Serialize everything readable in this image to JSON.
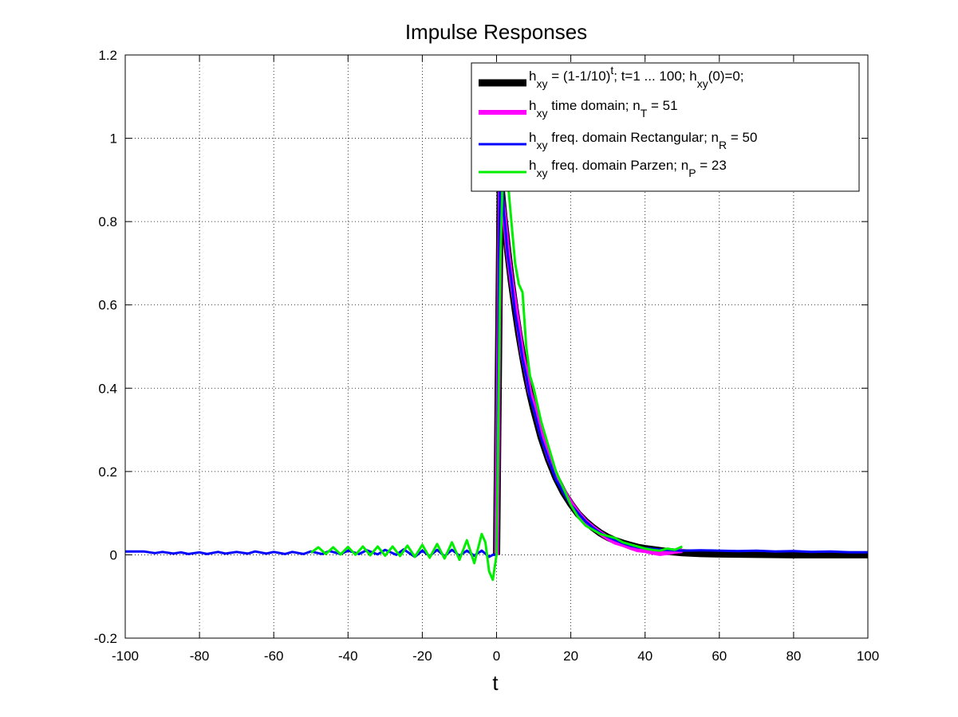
{
  "chart_data": {
    "type": "line",
    "title": "Impulse Responses",
    "xlabel": "t",
    "ylabel": "",
    "xlim": [
      -100,
      100
    ],
    "ylim": [
      -0.2,
      1.2
    ],
    "x_ticks": [
      "-100",
      "-80",
      "-60",
      "-40",
      "-20",
      "0",
      "20",
      "40",
      "60",
      "80",
      "100"
    ],
    "y_ticks": [
      "-0.2",
      "0",
      "0.2",
      "0.4",
      "0.6",
      "0.8",
      "1",
      "1.2"
    ],
    "grid": true,
    "legend_position": "top-right",
    "legend": [
      {
        "color": "#000000",
        "main": "h",
        "sub": "xy",
        "rest": " = (1-1/10)",
        "sup": "t",
        "rest2": "; t=1 ... 100; h",
        "sub2": "xy",
        "rest3": "(0)=0;"
      },
      {
        "color": "#ff00ff",
        "main": "h",
        "sub": "xy",
        "rest": " time domain; n",
        "sub2": "T",
        "rest2": " = 51"
      },
      {
        "color": "#0000ff",
        "main": "h",
        "sub": "xy",
        "rest": " freq. domain Rectangular; n",
        "sub2": "R",
        "rest2": " = 50"
      },
      {
        "color": "#00ee00",
        "main": "h",
        "sub": "xy",
        "rest": " freq. domain Parzen; n",
        "sub2": "P",
        "rest2": " = 23"
      }
    ],
    "series": [
      {
        "color": "#000000",
        "points": [
          [
            0,
            0
          ],
          [
            1,
            0.9
          ],
          [
            2,
            0.81
          ],
          [
            3,
            0.729
          ],
          [
            4,
            0.656
          ],
          [
            5,
            0.59
          ],
          [
            6,
            0.531
          ],
          [
            7,
            0.478
          ],
          [
            8,
            0.43
          ],
          [
            9,
            0.387
          ],
          [
            10,
            0.349
          ],
          [
            12,
            0.282
          ],
          [
            14,
            0.229
          ],
          [
            16,
            0.185
          ],
          [
            18,
            0.15
          ],
          [
            20,
            0.122
          ],
          [
            22,
            0.098
          ],
          [
            24,
            0.08
          ],
          [
            26,
            0.065
          ],
          [
            28,
            0.052
          ],
          [
            30,
            0.042
          ],
          [
            32,
            0.034
          ],
          [
            34,
            0.028
          ],
          [
            36,
            0.023
          ],
          [
            38,
            0.018
          ],
          [
            40,
            0.015
          ],
          [
            45,
            0.009
          ],
          [
            50,
            0.005
          ],
          [
            55,
            0.003
          ],
          [
            60,
            0.002
          ],
          [
            70,
            0.001
          ],
          [
            80,
            0.0
          ],
          [
            90,
            0.0
          ],
          [
            100,
            0.0
          ]
        ]
      },
      {
        "color": "#ff00ff",
        "points": [
          [
            0,
            0
          ],
          [
            1,
            0.89
          ],
          [
            2,
            0.82
          ],
          [
            3,
            0.73
          ],
          [
            4,
            0.66
          ],
          [
            5,
            0.6
          ],
          [
            6,
            0.54
          ],
          [
            7,
            0.48
          ],
          [
            8,
            0.44
          ],
          [
            9,
            0.39
          ],
          [
            10,
            0.36
          ],
          [
            12,
            0.29
          ],
          [
            14,
            0.235
          ],
          [
            16,
            0.19
          ],
          [
            18,
            0.155
          ],
          [
            20,
            0.125
          ],
          [
            22,
            0.1
          ],
          [
            24,
            0.08
          ],
          [
            26,
            0.065
          ],
          [
            28,
            0.052
          ],
          [
            30,
            0.04
          ],
          [
            32,
            0.03
          ],
          [
            34,
            0.025
          ],
          [
            36,
            0.018
          ],
          [
            38,
            0.012
          ],
          [
            40,
            0.01
          ],
          [
            42,
            0.006
          ],
          [
            44,
            0.003
          ],
          [
            46,
            0.005
          ],
          [
            48,
            0.008
          ],
          [
            50,
            0.01
          ]
        ]
      },
      {
        "color": "#0000ff",
        "points": [
          [
            -100,
            0.008
          ],
          [
            -95,
            0.008
          ],
          [
            -92,
            0.004
          ],
          [
            -90,
            0.007
          ],
          [
            -87,
            0.003
          ],
          [
            -85,
            0.006
          ],
          [
            -83,
            0.002
          ],
          [
            -80,
            0.006
          ],
          [
            -78,
            0.002
          ],
          [
            -75,
            0.007
          ],
          [
            -73,
            0.003
          ],
          [
            -70,
            0.007
          ],
          [
            -67,
            0.003
          ],
          [
            -65,
            0.008
          ],
          [
            -62,
            0.003
          ],
          [
            -60,
            0.007
          ],
          [
            -57,
            0.002
          ],
          [
            -55,
            0.007
          ],
          [
            -52,
            0.002
          ],
          [
            -50,
            0.008
          ],
          [
            -47,
            0.002
          ],
          [
            -45,
            0.009
          ],
          [
            -42,
            0.002
          ],
          [
            -40,
            0.01
          ],
          [
            -37,
            0.002
          ],
          [
            -35,
            0.011
          ],
          [
            -32,
            0.001
          ],
          [
            -30,
            0.012
          ],
          [
            -27,
            0.0
          ],
          [
            -25,
            0.013
          ],
          [
            -22,
            -0.005
          ],
          [
            -20,
            0.01
          ],
          [
            -18,
            -0.003
          ],
          [
            -16,
            0.012
          ],
          [
            -14,
            -0.003
          ],
          [
            -12,
            0.012
          ],
          [
            -10,
            -0.002
          ],
          [
            -8,
            0.01
          ],
          [
            -6,
            -0.002
          ],
          [
            -4,
            0.01
          ],
          [
            -2,
            -0.005
          ],
          [
            -1,
            0.0
          ],
          [
            0,
            0.0
          ],
          [
            1,
            1.01
          ],
          [
            2,
            0.82
          ],
          [
            3,
            0.72
          ],
          [
            4,
            0.66
          ],
          [
            5,
            0.58
          ],
          [
            6,
            0.53
          ],
          [
            7,
            0.47
          ],
          [
            8,
            0.43
          ],
          [
            9,
            0.38
          ],
          [
            10,
            0.35
          ],
          [
            12,
            0.28
          ],
          [
            14,
            0.23
          ],
          [
            16,
            0.18
          ],
          [
            18,
            0.15
          ],
          [
            20,
            0.12
          ],
          [
            22,
            0.1
          ],
          [
            24,
            0.08
          ],
          [
            26,
            0.065
          ],
          [
            28,
            0.052
          ],
          [
            30,
            0.043
          ],
          [
            32,
            0.035
          ],
          [
            34,
            0.028
          ],
          [
            36,
            0.022
          ],
          [
            38,
            0.018
          ],
          [
            40,
            0.016
          ],
          [
            45,
            0.012
          ],
          [
            50,
            0.01
          ],
          [
            55,
            0.011
          ],
          [
            60,
            0.01
          ],
          [
            65,
            0.009
          ],
          [
            70,
            0.01
          ],
          [
            75,
            0.008
          ],
          [
            80,
            0.009
          ],
          [
            85,
            0.007
          ],
          [
            90,
            0.008
          ],
          [
            95,
            0.006
          ],
          [
            100,
            0.006
          ]
        ]
      },
      {
        "color": "#00ee00",
        "points": [
          [
            -50,
            0.005
          ],
          [
            -48,
            0.018
          ],
          [
            -46,
            0.002
          ],
          [
            -44,
            0.018
          ],
          [
            -42,
            0.001
          ],
          [
            -40,
            0.019
          ],
          [
            -38,
            0.0
          ],
          [
            -36,
            0.02
          ],
          [
            -34,
            -0.001
          ],
          [
            -32,
            0.02
          ],
          [
            -30,
            -0.002
          ],
          [
            -28,
            0.02
          ],
          [
            -26,
            -0.003
          ],
          [
            -24,
            0.022
          ],
          [
            -22,
            -0.005
          ],
          [
            -20,
            0.024
          ],
          [
            -18,
            -0.007
          ],
          [
            -16,
            0.026
          ],
          [
            -14,
            -0.009
          ],
          [
            -12,
            0.03
          ],
          [
            -10,
            -0.012
          ],
          [
            -8,
            0.035
          ],
          [
            -6,
            -0.02
          ],
          [
            -4,
            0.05
          ],
          [
            -3,
            0.03
          ],
          [
            -2,
            -0.04
          ],
          [
            -1,
            -0.06
          ],
          [
            0,
            0.0
          ],
          [
            1,
            0.7
          ],
          [
            2,
            1.01
          ],
          [
            3,
            0.9
          ],
          [
            4,
            0.8
          ],
          [
            5,
            0.7
          ],
          [
            6,
            0.65
          ],
          [
            7,
            0.63
          ],
          [
            8,
            0.5
          ],
          [
            9,
            0.43
          ],
          [
            10,
            0.4
          ],
          [
            12,
            0.32
          ],
          [
            14,
            0.26
          ],
          [
            16,
            0.2
          ],
          [
            18,
            0.16
          ],
          [
            20,
            0.12
          ],
          [
            22,
            0.09
          ],
          [
            24,
            0.07
          ],
          [
            26,
            0.06
          ],
          [
            28,
            0.05
          ],
          [
            30,
            0.045
          ],
          [
            32,
            0.04
          ],
          [
            34,
            0.03
          ],
          [
            36,
            0.025
          ],
          [
            38,
            0.02
          ],
          [
            40,
            0.015
          ],
          [
            42,
            0.012
          ],
          [
            44,
            0.01
          ],
          [
            46,
            0.015
          ],
          [
            48,
            0.012
          ],
          [
            50,
            0.02
          ]
        ]
      }
    ]
  }
}
